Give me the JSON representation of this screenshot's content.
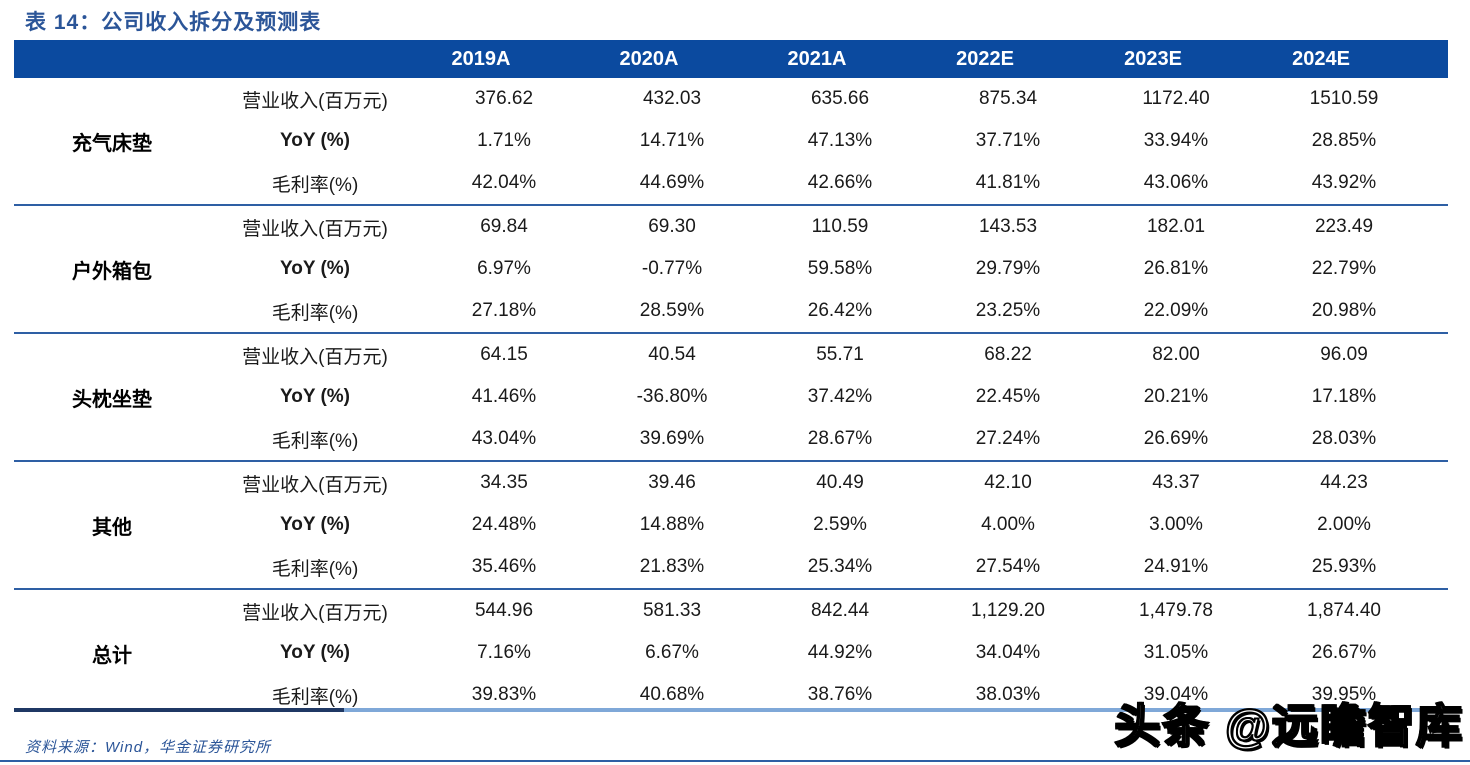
{
  "title": "表 14：公司收入拆分及预测表",
  "source_note": "资料来源：Wind，华金证券研究所",
  "watermark": {
    "text": "头条 @远瞻智库"
  },
  "colors": {
    "header_bg": "#0B4A9F",
    "header_text": "#FFFFFF",
    "title_text": "#2B5598",
    "group_separator": "#2E5FA4",
    "bottom_border_dark": "#1F3864",
    "bottom_border_light": "#7FA8D8",
    "source_text": "#2B5598",
    "body_text": "#1A1A1A"
  },
  "chart_data": {
    "type": "table",
    "title": "表 14：公司收入拆分及预测表",
    "year_columns": [
      "2019A",
      "2020A",
      "2021A",
      "2022E",
      "2023E",
      "2024E"
    ],
    "groups": [
      {
        "name": "充气床垫",
        "rows": [
          {
            "metric": "营业收入(百万元)",
            "values": [
              "376.62",
              "432.03",
              "635.66",
              "875.34",
              "1172.40",
              "1510.59"
            ]
          },
          {
            "metric": "YoY (%)",
            "values": [
              "1.71%",
              "14.71%",
              "47.13%",
              "37.71%",
              "33.94%",
              "28.85%"
            ]
          },
          {
            "metric": "毛利率(%)",
            "values": [
              "42.04%",
              "44.69%",
              "42.66%",
              "41.81%",
              "43.06%",
              "43.92%"
            ]
          }
        ]
      },
      {
        "name": "户外箱包",
        "rows": [
          {
            "metric": "营业收入(百万元)",
            "values": [
              "69.84",
              "69.30",
              "110.59",
              "143.53",
              "182.01",
              "223.49"
            ]
          },
          {
            "metric": "YoY (%)",
            "values": [
              "6.97%",
              "-0.77%",
              "59.58%",
              "29.79%",
              "26.81%",
              "22.79%"
            ]
          },
          {
            "metric": "毛利率(%)",
            "values": [
              "27.18%",
              "28.59%",
              "26.42%",
              "23.25%",
              "22.09%",
              "20.98%"
            ]
          }
        ]
      },
      {
        "name": "头枕坐垫",
        "rows": [
          {
            "metric": "营业收入(百万元)",
            "values": [
              "64.15",
              "40.54",
              "55.71",
              "68.22",
              "82.00",
              "96.09"
            ]
          },
          {
            "metric": "YoY (%)",
            "values": [
              "41.46%",
              "-36.80%",
              "37.42%",
              "22.45%",
              "20.21%",
              "17.18%"
            ]
          },
          {
            "metric": "毛利率(%)",
            "values": [
              "43.04%",
              "39.69%",
              "28.67%",
              "27.24%",
              "26.69%",
              "28.03%"
            ]
          }
        ]
      },
      {
        "name": "其他",
        "rows": [
          {
            "metric": "营业收入(百万元)",
            "values": [
              "34.35",
              "39.46",
              "40.49",
              "42.10",
              "43.37",
              "44.23"
            ]
          },
          {
            "metric": "YoY (%)",
            "values": [
              "24.48%",
              "14.88%",
              "2.59%",
              "4.00%",
              "3.00%",
              "2.00%"
            ]
          },
          {
            "metric": "毛利率(%)",
            "values": [
              "35.46%",
              "21.83%",
              "25.34%",
              "27.54%",
              "24.91%",
              "25.93%"
            ]
          }
        ]
      },
      {
        "name": "总计",
        "rows": [
          {
            "metric": "营业收入(百万元)",
            "values": [
              "544.96",
              "581.33",
              "842.44",
              "1,129.20",
              "1,479.78",
              "1,874.40"
            ]
          },
          {
            "metric": "YoY (%)",
            "values": [
              "7.16%",
              "6.67%",
              "44.92%",
              "34.04%",
              "31.05%",
              "26.67%"
            ]
          },
          {
            "metric": "毛利率(%)",
            "values": [
              "39.83%",
              "40.68%",
              "38.76%",
              "38.03%",
              "39.04%",
              "39.95%"
            ]
          }
        ]
      }
    ]
  }
}
